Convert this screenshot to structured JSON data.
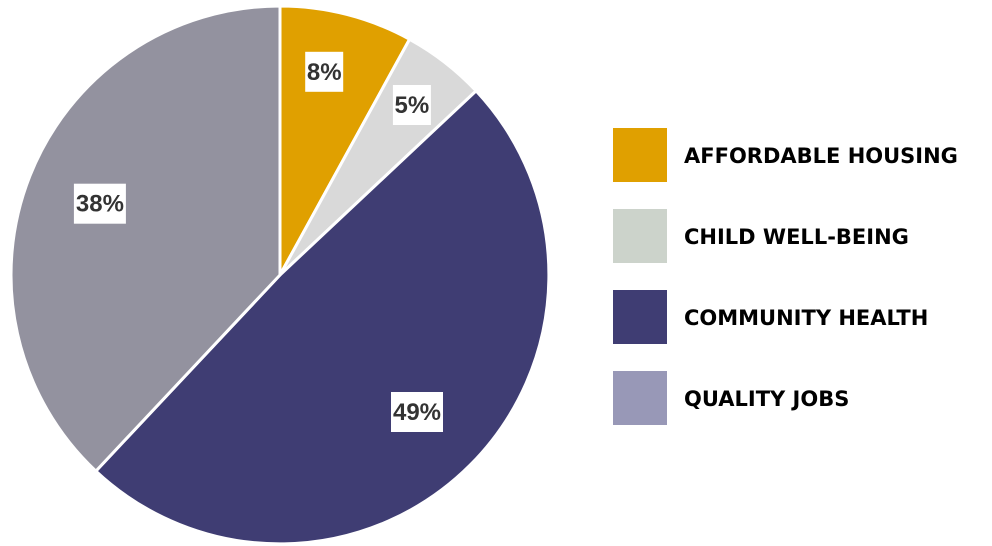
{
  "chart_data": {
    "type": "pie",
    "categories": [
      "AFFORDABLE HOUSING",
      "CHILD WELL-BEING",
      "COMMUNITY HEALTH",
      "QUALITY JOBS"
    ],
    "values": [
      8,
      5,
      49,
      38
    ],
    "value_labels": [
      "8%",
      "5%",
      "49%",
      "38%"
    ],
    "colors": [
      "#E0A000",
      "#D9D9D9",
      "#3F3D73",
      "#93929F"
    ],
    "legend_colors": [
      "#E0A000",
      "#CCD3CB",
      "#3F3D73",
      "#9898B7"
    ],
    "legend_placement": "right",
    "start_angle": "top",
    "direction": "clockwise"
  }
}
